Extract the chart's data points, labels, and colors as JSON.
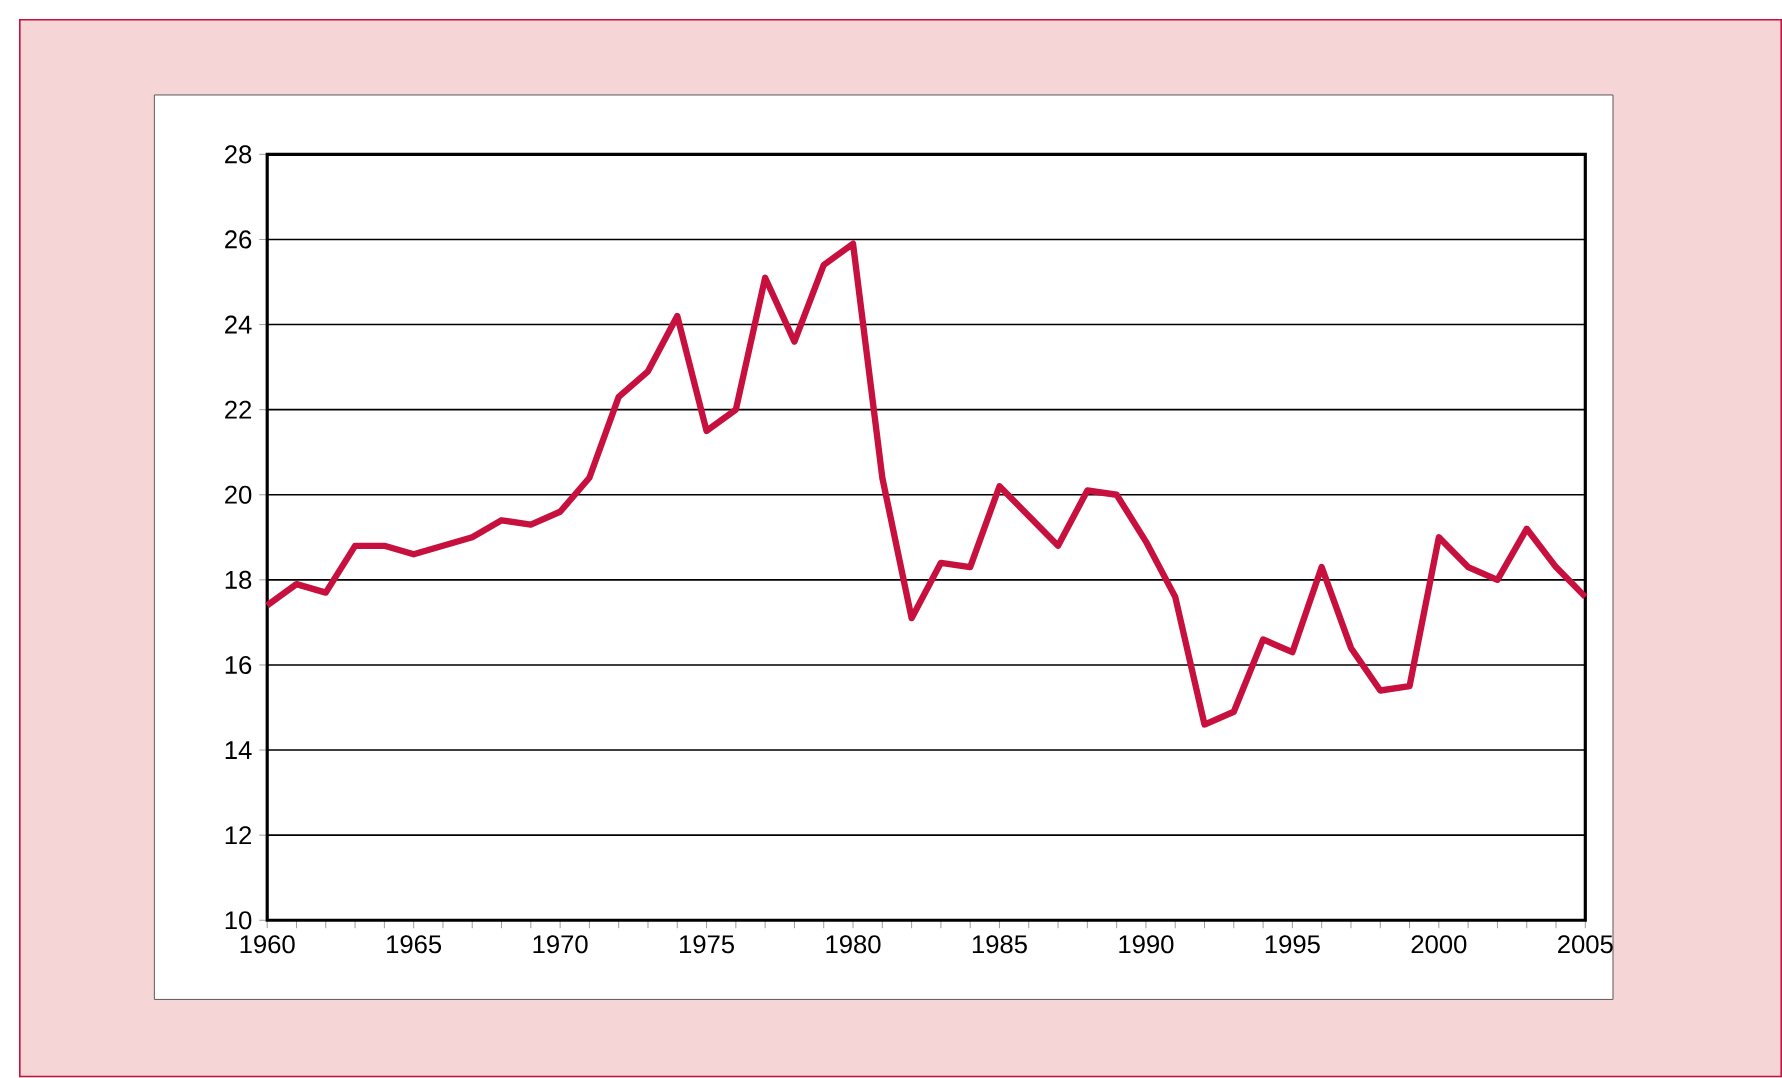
{
  "chart_data": {
    "type": "line",
    "x": [
      1960,
      1961,
      1962,
      1963,
      1964,
      1965,
      1966,
      1967,
      1968,
      1969,
      1970,
      1971,
      1972,
      1973,
      1974,
      1975,
      1976,
      1977,
      1978,
      1979,
      1980,
      1981,
      1982,
      1983,
      1984,
      1985,
      1986,
      1987,
      1988,
      1989,
      1990,
      1991,
      1992,
      1993,
      1994,
      1995,
      1996,
      1997,
      1998,
      1999,
      2000,
      2001,
      2002,
      2003,
      2004,
      2005
    ],
    "series": [
      {
        "color": "#c8103f",
        "values": [
          17.4,
          17.9,
          17.7,
          18.8,
          18.8,
          18.6,
          18.8,
          19.0,
          19.4,
          19.3,
          19.6,
          20.4,
          22.3,
          22.9,
          24.2,
          21.5,
          22.0,
          25.1,
          23.6,
          25.4,
          25.9,
          20.4,
          17.1,
          18.4,
          18.3,
          20.2,
          19.5,
          18.8,
          20.1,
          20.0,
          18.9,
          17.6,
          14.6,
          14.9,
          16.6,
          16.3,
          18.3,
          16.4,
          15.4,
          15.5,
          19.0,
          18.3,
          18.0,
          19.2,
          18.3,
          17.6
        ]
      }
    ],
    "xlim": [
      1960,
      2005
    ],
    "xticks": [
      1960,
      1965,
      1970,
      1975,
      1980,
      1985,
      1990,
      1995,
      2000,
      2005
    ],
    "ylim": [
      10,
      28
    ],
    "yticks": [
      10,
      12,
      14,
      16,
      18,
      20,
      22,
      24,
      26,
      28
    ],
    "grid": "y",
    "marker": "none",
    "line_style": "solid"
  }
}
